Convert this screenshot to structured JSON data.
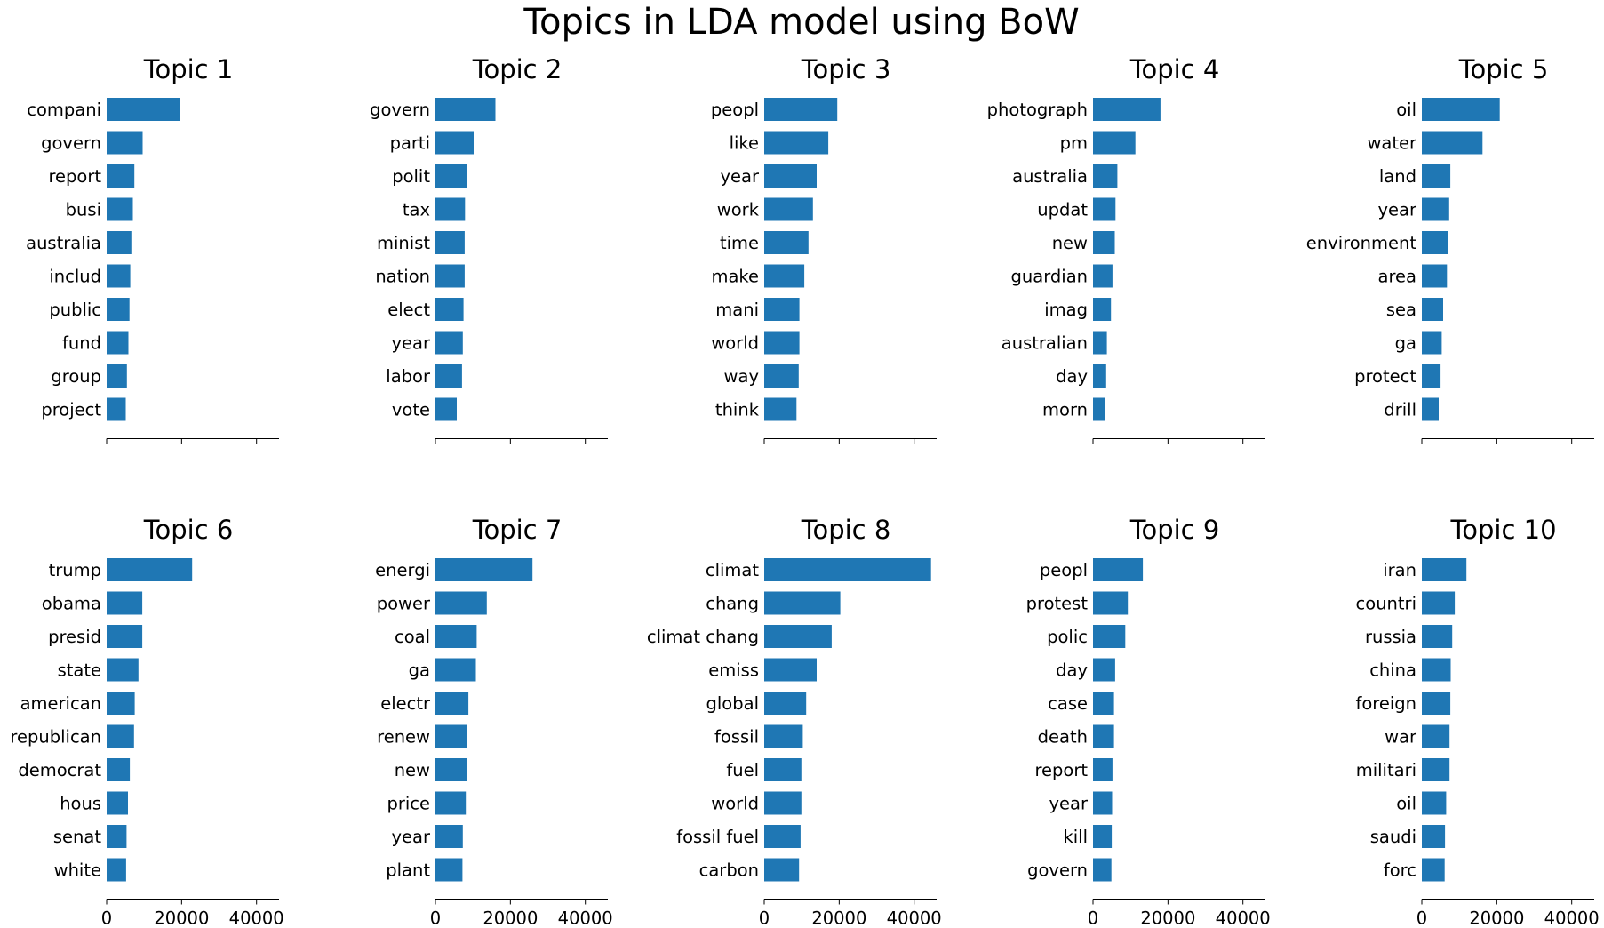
{
  "figure": {
    "title": "Topics in LDA model using BoW",
    "bar_color": "#1f77b4"
  },
  "chart_data": [
    {
      "type": "bar",
      "orientation": "horizontal",
      "title": "Topic 1",
      "categories": [
        "compani",
        "govern",
        "report",
        "busi",
        "australia",
        "includ",
        "public",
        "fund",
        "group",
        "project"
      ],
      "values": [
        19500,
        9600,
        7400,
        7000,
        6600,
        6300,
        6100,
        5800,
        5400,
        5100
      ],
      "xlim": [
        0,
        46000
      ],
      "xticks": [
        0,
        20000,
        40000
      ],
      "xtick_labels_shown": false
    },
    {
      "type": "bar",
      "orientation": "horizontal",
      "title": "Topic 2",
      "categories": [
        "govern",
        "parti",
        "polit",
        "tax",
        "minist",
        "nation",
        "elect",
        "year",
        "labor",
        "vote"
      ],
      "values": [
        16000,
        10200,
        8300,
        7900,
        7800,
        7800,
        7500,
        7300,
        7100,
        5700
      ],
      "xlim": [
        0,
        46000
      ],
      "xticks": [
        0,
        20000,
        40000
      ],
      "xtick_labels_shown": false
    },
    {
      "type": "bar",
      "orientation": "horizontal",
      "title": "Topic 3",
      "categories": [
        "peopl",
        "like",
        "year",
        "work",
        "time",
        "make",
        "mani",
        "world",
        "way",
        "think"
      ],
      "values": [
        19500,
        17100,
        14000,
        13000,
        11800,
        10700,
        9400,
        9400,
        9200,
        8600
      ],
      "xlim": [
        0,
        46000
      ],
      "xticks": [
        0,
        20000,
        40000
      ],
      "xtick_labels_shown": false
    },
    {
      "type": "bar",
      "orientation": "horizontal",
      "title": "Topic 4",
      "categories": [
        "photograph",
        "pm",
        "australia",
        "updat",
        "new",
        "guardian",
        "imag",
        "australian",
        "day",
        "morn"
      ],
      "values": [
        18000,
        11300,
        6500,
        6000,
        5800,
        5200,
        4800,
        3700,
        3500,
        3200
      ],
      "xlim": [
        0,
        46000
      ],
      "xticks": [
        0,
        20000,
        40000
      ],
      "xtick_labels_shown": false
    },
    {
      "type": "bar",
      "orientation": "horizontal",
      "title": "Topic 5",
      "categories": [
        "oil",
        "water",
        "land",
        "year",
        "environment",
        "area",
        "sea",
        "ga",
        "protect",
        "drill"
      ],
      "values": [
        20800,
        16200,
        7600,
        7300,
        7000,
        6700,
        5700,
        5300,
        5000,
        4500
      ],
      "xlim": [
        0,
        46000
      ],
      "xticks": [
        0,
        20000,
        40000
      ],
      "xtick_labels_shown": false
    },
    {
      "type": "bar",
      "orientation": "horizontal",
      "title": "Topic 6",
      "categories": [
        "trump",
        "obama",
        "presid",
        "state",
        "american",
        "republican",
        "democrat",
        "hous",
        "senat",
        "white"
      ],
      "values": [
        22800,
        9500,
        9500,
        8500,
        7500,
        7300,
        6200,
        5700,
        5300,
        5200
      ],
      "xlim": [
        0,
        46000
      ],
      "xticks": [
        0,
        20000,
        40000
      ],
      "xtick_labels": [
        "0",
        "20000",
        "40000"
      ]
    },
    {
      "type": "bar",
      "orientation": "horizontal",
      "title": "Topic 7",
      "categories": [
        "energi",
        "power",
        "coal",
        "ga",
        "electr",
        "renew",
        "new",
        "price",
        "year",
        "plant"
      ],
      "values": [
        25900,
        13700,
        11000,
        10800,
        8800,
        8500,
        8300,
        8100,
        7300,
        7200
      ],
      "xlim": [
        0,
        46000
      ],
      "xticks": [
        0,
        20000,
        40000
      ],
      "xtick_labels": [
        "0",
        "20000",
        "40000"
      ]
    },
    {
      "type": "bar",
      "orientation": "horizontal",
      "title": "Topic 8",
      "categories": [
        "climat",
        "chang",
        "climat chang",
        "emiss",
        "global",
        "fossil",
        "fuel",
        "world",
        "fossil fuel",
        "carbon"
      ],
      "values": [
        44500,
        20300,
        18000,
        14000,
        11200,
        10300,
        9900,
        9900,
        9700,
        9300
      ],
      "xlim": [
        0,
        46000
      ],
      "xticks": [
        0,
        20000,
        40000
      ],
      "xtick_labels": [
        "0",
        "20000",
        "40000"
      ]
    },
    {
      "type": "bar",
      "orientation": "horizontal",
      "title": "Topic 9",
      "categories": [
        "peopl",
        "protest",
        "polic",
        "day",
        "case",
        "death",
        "report",
        "year",
        "kill",
        "govern"
      ],
      "values": [
        13300,
        9300,
        8600,
        5900,
        5600,
        5600,
        5200,
        5100,
        5000,
        4900
      ],
      "xlim": [
        0,
        46000
      ],
      "xticks": [
        0,
        20000,
        40000
      ],
      "xtick_labels": [
        "0",
        "20000",
        "40000"
      ]
    },
    {
      "type": "bar",
      "orientation": "horizontal",
      "title": "Topic 10",
      "categories": [
        "iran",
        "countri",
        "russia",
        "china",
        "foreign",
        "war",
        "militari",
        "oil",
        "saudi",
        "forc"
      ],
      "values": [
        11900,
        8800,
        8100,
        7700,
        7600,
        7400,
        7400,
        6500,
        6200,
        6100
      ],
      "xlim": [
        0,
        46000
      ],
      "xticks": [
        0,
        20000,
        40000
      ],
      "xtick_labels": [
        "0",
        "20000",
        "40000"
      ]
    }
  ]
}
